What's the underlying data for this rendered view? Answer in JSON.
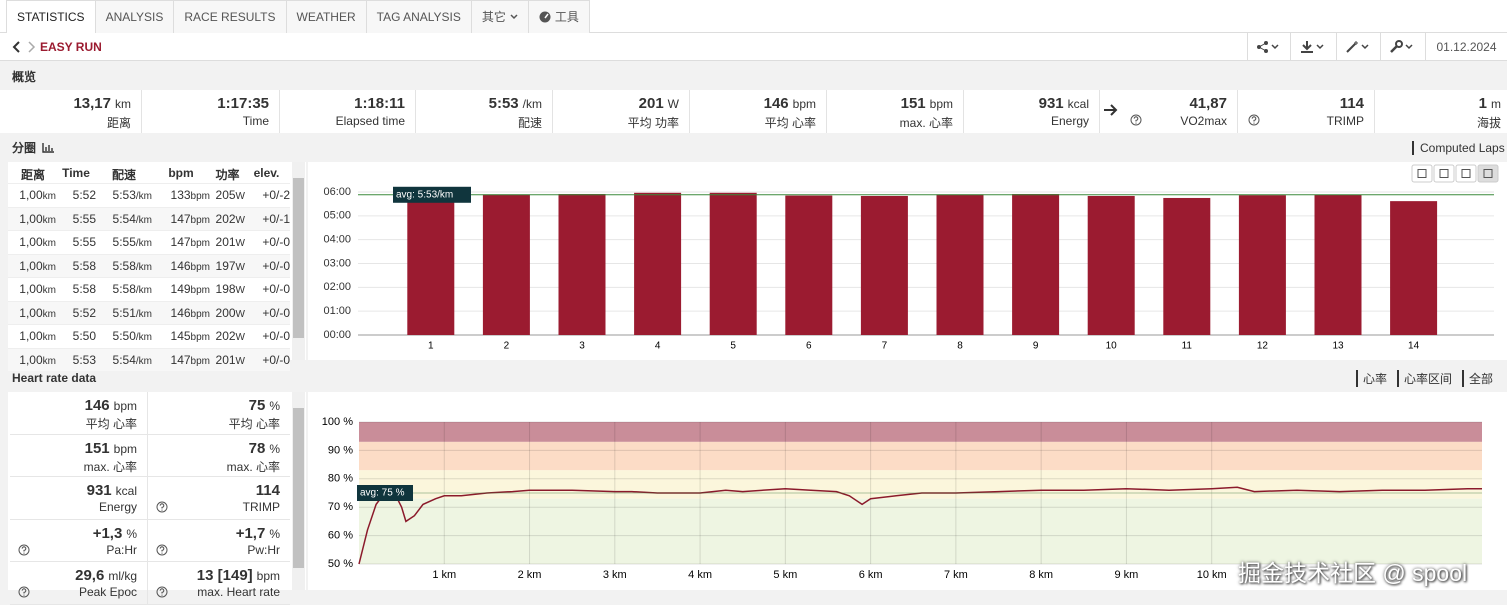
{
  "tabs": [
    "STATISTICS",
    "ANALYSIS",
    "RACE RESULTS",
    "WEATHER",
    "TAG ANALYSIS",
    "其它",
    "工具"
  ],
  "header": {
    "title": "EASY RUN",
    "date": "01.12.2024"
  },
  "overview": {
    "title": "概览",
    "stats": [
      {
        "value": "13,17",
        "unit": "km",
        "label": "距离"
      },
      {
        "value": "1:17:35",
        "label": "Time"
      },
      {
        "value": "1:18:11",
        "label": "Elapsed time"
      },
      {
        "value": "5:53",
        "unit": "/km",
        "label": "配速"
      },
      {
        "value": "201",
        "unit": "W",
        "label": "平均 功率"
      },
      {
        "value": "146",
        "unit": "bpm",
        "label": "平均 心率"
      },
      {
        "value": "151",
        "unit": "bpm",
        "label": "max. 心率"
      },
      {
        "value": "931",
        "unit": "kcal",
        "label": "Energy"
      },
      {
        "value": "41,87",
        "label": "VO2max",
        "help": true
      },
      {
        "value": "114",
        "label": "TRIMP",
        "help": true
      },
      {
        "value": "1",
        "unit": "m",
        "label": "海拔"
      }
    ]
  },
  "laps": {
    "title": "分圈",
    "computed": "Computed Laps",
    "columns": [
      {
        "name": "距离",
        "unit": "km"
      },
      {
        "name": "Time"
      },
      {
        "name": "配速",
        "unit": "/km"
      },
      {
        "name": "bpm",
        "unit": "bpm"
      },
      {
        "name": "功率",
        "unit": "W"
      },
      {
        "name": "elev."
      }
    ],
    "rows": [
      [
        "1,00",
        "5:52",
        "5:53",
        "133",
        "205",
        "+0/-2"
      ],
      [
        "1,00",
        "5:55",
        "5:54",
        "147",
        "202",
        "+0/-1"
      ],
      [
        "1,00",
        "5:55",
        "5:55",
        "147",
        "201",
        "+0/-0"
      ],
      [
        "1,00",
        "5:58",
        "5:58",
        "146",
        "197",
        "+0/-0"
      ],
      [
        "1,00",
        "5:58",
        "5:58",
        "149",
        "198",
        "+0/-0"
      ],
      [
        "1,00",
        "5:52",
        "5:51",
        "146",
        "200",
        "+0/-0"
      ],
      [
        "1,00",
        "5:50",
        "5:50",
        "145",
        "202",
        "+0/-0"
      ],
      [
        "1,00",
        "5:53",
        "5:54",
        "147",
        "201",
        "+0/-0"
      ]
    ]
  },
  "chart_data": [
    {
      "type": "bar",
      "categories": [
        "1",
        "2",
        "3",
        "4",
        "5",
        "6",
        "7",
        "8",
        "9",
        "10",
        "11",
        "12",
        "13",
        "14"
      ],
      "values": [
        353,
        354,
        355,
        358,
        358,
        351,
        350,
        354,
        355,
        350,
        345,
        352,
        353,
        337
      ],
      "color": "#9b1b30",
      "ylim": [
        0,
        360
      ],
      "yticks": [
        {
          "value": 0,
          "label": "00:00"
        },
        {
          "value": 60,
          "label": "01:00"
        },
        {
          "value": 120,
          "label": "02:00"
        },
        {
          "value": 180,
          "label": "03:00"
        },
        {
          "value": 240,
          "label": "04:00"
        },
        {
          "value": 300,
          "label": "05:00"
        },
        {
          "value": 360,
          "label": "06:00"
        }
      ],
      "grid": true,
      "annotation": {
        "value": 353,
        "label": "avg: 5:53/km"
      }
    },
    {
      "type": "line",
      "x": [
        0,
        0.1,
        0.2,
        0.3,
        0.4,
        0.5,
        0.55,
        0.65,
        0.75,
        0.9,
        1.0,
        1.2,
        1.5,
        1.8,
        2.0,
        2.5,
        3.0,
        3.2,
        3.5,
        4.0,
        4.3,
        4.5,
        5.0,
        5.3,
        5.6,
        5.75,
        5.9,
        6.0,
        6.3,
        6.6,
        7.0,
        7.5,
        8.0,
        8.5,
        9.0,
        9.5,
        10.0,
        10.3,
        10.5,
        11.0,
        11.5,
        12.0,
        12.5,
        13.0,
        13.17
      ],
      "values": [
        50,
        62,
        71,
        75,
        76,
        70,
        65,
        67,
        71,
        73,
        74,
        74,
        75,
        75.5,
        76,
        76,
        75.5,
        75.5,
        75,
        75,
        76,
        75.5,
        76.5,
        76,
        75.5,
        74,
        71,
        73,
        74,
        75,
        75,
        75.5,
        76,
        76,
        76.5,
        76,
        76.5,
        77,
        75.5,
        76,
        75.5,
        76,
        76,
        76.5,
        76.5
      ],
      "color": "#8b1a2b",
      "xlim": [
        0,
        13.17
      ],
      "xticks": [
        {
          "value": 1,
          "label": "1 km"
        },
        {
          "value": 2,
          "label": "2 km"
        },
        {
          "value": 3,
          "label": "3 km"
        },
        {
          "value": 4,
          "label": "4 km"
        },
        {
          "value": 5,
          "label": "5 km"
        },
        {
          "value": 6,
          "label": "6 km"
        },
        {
          "value": 7,
          "label": "7 km"
        },
        {
          "value": 8,
          "label": "8 km"
        },
        {
          "value": 9,
          "label": "9 km"
        },
        {
          "value": 10,
          "label": "10 km"
        }
      ],
      "ylim": [
        50,
        100
      ],
      "yticks": [
        {
          "value": 50,
          "label": "50 %"
        },
        {
          "value": 60,
          "label": "60 %"
        },
        {
          "value": 70,
          "label": "70 %"
        },
        {
          "value": 80,
          "label": "80 %"
        },
        {
          "value": 90,
          "label": "90 %"
        },
        {
          "value": 100,
          "label": "100 %"
        }
      ],
      "zones": [
        {
          "from": 93,
          "to": 100,
          "color": "#c98d99"
        },
        {
          "from": 83,
          "to": 93,
          "color": "#fcdcc6"
        },
        {
          "from": 73,
          "to": 83,
          "color": "#fbf6dc"
        },
        {
          "from": 50,
          "to": 73,
          "color": "#eef5e2"
        }
      ],
      "grid": true,
      "annotation": {
        "value": 75,
        "label": "avg: 75 %"
      }
    }
  ],
  "heart_rate": {
    "title": "Heart rate data",
    "controls": [
      "心率",
      "心率区间",
      "全部"
    ],
    "cells": [
      {
        "value": "146",
        "unit": "bpm",
        "label": "平均 心率"
      },
      {
        "value": "75",
        "unit": "%",
        "label": "平均 心率"
      },
      {
        "value": "151",
        "unit": "bpm",
        "label": "max. 心率"
      },
      {
        "value": "78",
        "unit": "%",
        "label": "max. 心率"
      },
      {
        "value": "931",
        "unit": "kcal",
        "label": "Energy"
      },
      {
        "value": "114",
        "label": "TRIMP",
        "help": true
      },
      {
        "value": "+1,3",
        "unit": "%",
        "label": "Pa:Hr",
        "help": true
      },
      {
        "value": "+1,7",
        "unit": "%",
        "label": "Pw:Hr",
        "help": true
      },
      {
        "value": "29,6",
        "unit": "ml/kg",
        "label": "Peak Epoc",
        "help": true
      },
      {
        "value": "13 [149]",
        "unit": "bpm",
        "label": "max. Heart rate",
        "help": true
      }
    ]
  },
  "watermark": "掘金技术社区 @ spool"
}
